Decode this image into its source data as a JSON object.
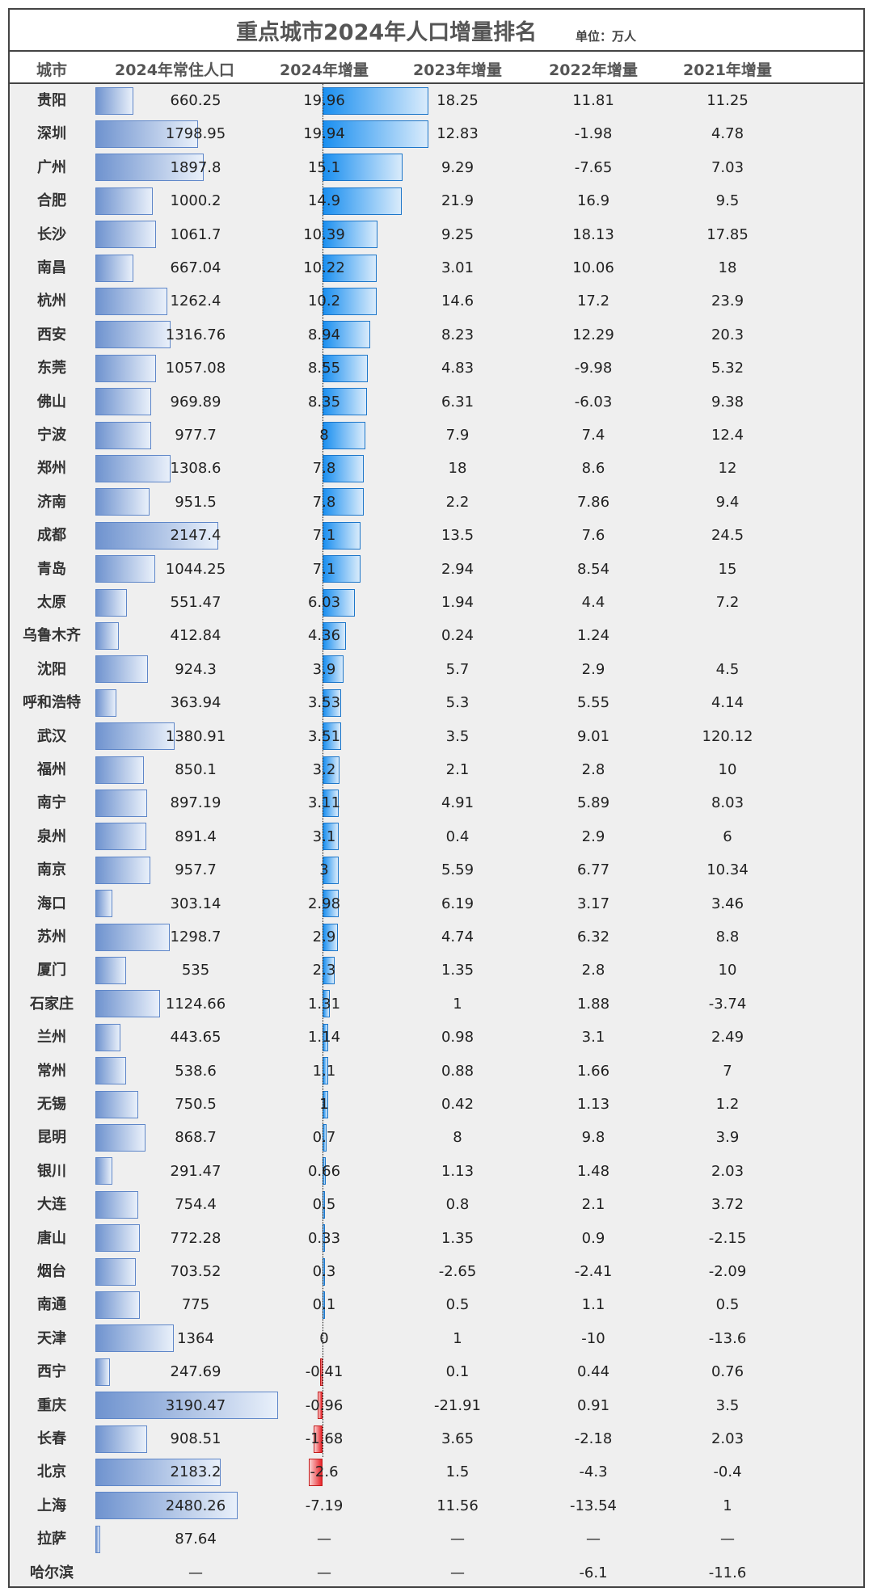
{
  "chart_data": {
    "type": "table",
    "title": "重点城市2024年人口增量排名",
    "unit": "单位：万人",
    "columns": [
      "城市",
      "2024年常住人口",
      "2024年增量",
      "2023年增量",
      "2022年增量",
      "2021年增量"
    ],
    "rows": [
      {
        "city": "贵阳",
        "pop": "660.25",
        "inc2024": "19.96",
        "inc2023": "18.25",
        "inc2022": "11.81",
        "inc2021": "11.25"
      },
      {
        "city": "深圳",
        "pop": "1798.95",
        "inc2024": "19.94",
        "inc2023": "12.83",
        "inc2022": "-1.98",
        "inc2021": "4.78"
      },
      {
        "city": "广州",
        "pop": "1897.8",
        "inc2024": "15.1",
        "inc2023": "9.29",
        "inc2022": "-7.65",
        "inc2021": "7.03"
      },
      {
        "city": "合肥",
        "pop": "1000.2",
        "inc2024": "14.9",
        "inc2023": "21.9",
        "inc2022": "16.9",
        "inc2021": "9.5"
      },
      {
        "city": "长沙",
        "pop": "1061.7",
        "inc2024": "10.39",
        "inc2023": "9.25",
        "inc2022": "18.13",
        "inc2021": "17.85"
      },
      {
        "city": "南昌",
        "pop": "667.04",
        "inc2024": "10.22",
        "inc2023": "3.01",
        "inc2022": "10.06",
        "inc2021": "18"
      },
      {
        "city": "杭州",
        "pop": "1262.4",
        "inc2024": "10.2",
        "inc2023": "14.6",
        "inc2022": "17.2",
        "inc2021": "23.9"
      },
      {
        "city": "西安",
        "pop": "1316.76",
        "inc2024": "8.94",
        "inc2023": "8.23",
        "inc2022": "12.29",
        "inc2021": "20.3"
      },
      {
        "city": "东莞",
        "pop": "1057.08",
        "inc2024": "8.55",
        "inc2023": "4.83",
        "inc2022": "-9.98",
        "inc2021": "5.32"
      },
      {
        "city": "佛山",
        "pop": "969.89",
        "inc2024": "8.35",
        "inc2023": "6.31",
        "inc2022": "-6.03",
        "inc2021": "9.38"
      },
      {
        "city": "宁波",
        "pop": "977.7",
        "inc2024": "8",
        "inc2023": "7.9",
        "inc2022": "7.4",
        "inc2021": "12.4"
      },
      {
        "city": "郑州",
        "pop": "1308.6",
        "inc2024": "7.8",
        "inc2023": "18",
        "inc2022": "8.6",
        "inc2021": "12"
      },
      {
        "city": "济南",
        "pop": "951.5",
        "inc2024": "7.8",
        "inc2023": "2.2",
        "inc2022": "7.86",
        "inc2021": "9.4"
      },
      {
        "city": "成都",
        "pop": "2147.4",
        "inc2024": "7.1",
        "inc2023": "13.5",
        "inc2022": "7.6",
        "inc2021": "24.5"
      },
      {
        "city": "青岛",
        "pop": "1044.25",
        "inc2024": "7.1",
        "inc2023": "2.94",
        "inc2022": "8.54",
        "inc2021": "15"
      },
      {
        "city": "太原",
        "pop": "551.47",
        "inc2024": "6.03",
        "inc2023": "1.94",
        "inc2022": "4.4",
        "inc2021": "7.2"
      },
      {
        "city": "乌鲁木齐",
        "pop": "412.84",
        "inc2024": "4.36",
        "inc2023": "0.24",
        "inc2022": "1.24",
        "inc2021": ""
      },
      {
        "city": "沈阳",
        "pop": "924.3",
        "inc2024": "3.9",
        "inc2023": "5.7",
        "inc2022": "2.9",
        "inc2021": "4.5"
      },
      {
        "city": "呼和浩特",
        "pop": "363.94",
        "inc2024": "3.53",
        "inc2023": "5.3",
        "inc2022": "5.55",
        "inc2021": "4.14"
      },
      {
        "city": "武汉",
        "pop": "1380.91",
        "inc2024": "3.51",
        "inc2023": "3.5",
        "inc2022": "9.01",
        "inc2021": "120.12"
      },
      {
        "city": "福州",
        "pop": "850.1",
        "inc2024": "3.2",
        "inc2023": "2.1",
        "inc2022": "2.8",
        "inc2021": "10"
      },
      {
        "city": "南宁",
        "pop": "897.19",
        "inc2024": "3.11",
        "inc2023": "4.91",
        "inc2022": "5.89",
        "inc2021": "8.03"
      },
      {
        "city": "泉州",
        "pop": "891.4",
        "inc2024": "3.1",
        "inc2023": "0.4",
        "inc2022": "2.9",
        "inc2021": "6"
      },
      {
        "city": "南京",
        "pop": "957.7",
        "inc2024": "3",
        "inc2023": "5.59",
        "inc2022": "6.77",
        "inc2021": "10.34"
      },
      {
        "city": "海口",
        "pop": "303.14",
        "inc2024": "2.98",
        "inc2023": "6.19",
        "inc2022": "3.17",
        "inc2021": "3.46"
      },
      {
        "city": "苏州",
        "pop": "1298.7",
        "inc2024": "2.9",
        "inc2023": "4.74",
        "inc2022": "6.32",
        "inc2021": "8.8"
      },
      {
        "city": "厦门",
        "pop": "535",
        "inc2024": "2.3",
        "inc2023": "1.35",
        "inc2022": "2.8",
        "inc2021": "10"
      },
      {
        "city": "石家庄",
        "pop": "1124.66",
        "inc2024": "1.31",
        "inc2023": "1",
        "inc2022": "1.88",
        "inc2021": "-3.74"
      },
      {
        "city": "兰州",
        "pop": "443.65",
        "inc2024": "1.14",
        "inc2023": "0.98",
        "inc2022": "3.1",
        "inc2021": "2.49"
      },
      {
        "city": "常州",
        "pop": "538.6",
        "inc2024": "1.1",
        "inc2023": "0.88",
        "inc2022": "1.66",
        "inc2021": "7"
      },
      {
        "city": "无锡",
        "pop": "750.5",
        "inc2024": "1",
        "inc2023": "0.42",
        "inc2022": "1.13",
        "inc2021": "1.2"
      },
      {
        "city": "昆明",
        "pop": "868.7",
        "inc2024": "0.7",
        "inc2023": "8",
        "inc2022": "9.8",
        "inc2021": "3.9"
      },
      {
        "city": "银川",
        "pop": "291.47",
        "inc2024": "0.66",
        "inc2023": "1.13",
        "inc2022": "1.48",
        "inc2021": "2.03"
      },
      {
        "city": "大连",
        "pop": "754.4",
        "inc2024": "0.5",
        "inc2023": "0.8",
        "inc2022": "2.1",
        "inc2021": "3.72"
      },
      {
        "city": "唐山",
        "pop": "772.28",
        "inc2024": "0.33",
        "inc2023": "1.35",
        "inc2022": "0.9",
        "inc2021": "-2.15"
      },
      {
        "city": "烟台",
        "pop": "703.52",
        "inc2024": "0.3",
        "inc2023": "-2.65",
        "inc2022": "-2.41",
        "inc2021": "-2.09"
      },
      {
        "city": "南通",
        "pop": "775",
        "inc2024": "0.1",
        "inc2023": "0.5",
        "inc2022": "1.1",
        "inc2021": "0.5"
      },
      {
        "city": "天津",
        "pop": "1364",
        "inc2024": "0",
        "inc2023": "1",
        "inc2022": "-10",
        "inc2021": "-13.6"
      },
      {
        "city": "西宁",
        "pop": "247.69",
        "inc2024": "-0.41",
        "inc2023": "0.1",
        "inc2022": "0.44",
        "inc2021": "0.76"
      },
      {
        "city": "重庆",
        "pop": "3190.47",
        "inc2024": "-0.96",
        "inc2023": "-21.91",
        "inc2022": "0.91",
        "inc2021": "3.5"
      },
      {
        "city": "长春",
        "pop": "908.51",
        "inc2024": "-1.68",
        "inc2023": "3.65",
        "inc2022": "-2.18",
        "inc2021": "2.03"
      },
      {
        "city": "北京",
        "pop": "2183.2",
        "inc2024": "-2.6",
        "inc2023": "1.5",
        "inc2022": "-4.3",
        "inc2021": "-0.4"
      },
      {
        "city": "上海",
        "pop": "2480.26",
        "inc2024": "-7.19",
        "inc2023": "11.56",
        "inc2022": "-13.54",
        "inc2021": "1"
      },
      {
        "city": "拉萨",
        "pop": "87.64",
        "inc2024": "—",
        "inc2023": "—",
        "inc2022": "—",
        "inc2021": "—"
      },
      {
        "city": "哈尔滨",
        "pop": "—",
        "inc2024": "—",
        "inc2023": "—",
        "inc2022": "-6.1",
        "inc2021": "-11.6"
      }
    ]
  },
  "colors": {
    "pop_bar": "#6f93cf",
    "increase_bar": "#1a8ff0",
    "decrease_bar": "#e8242a"
  }
}
